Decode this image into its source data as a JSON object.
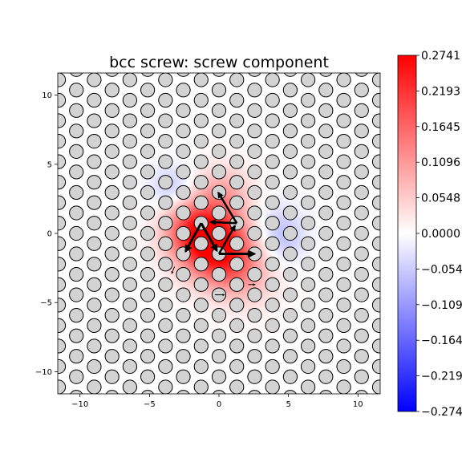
{
  "chart_data": {
    "type": "differential-displacement map with colored field",
    "title": "bcc screw: screw component",
    "xlim": [
      -11.6,
      11.6
    ],
    "ylim": [
      -11.6,
      11.6
    ],
    "x_ticks": [
      {
        "value": -10,
        "label": "−10"
      },
      {
        "value": -5,
        "label": "−5"
      },
      {
        "value": 0,
        "label": "0"
      },
      {
        "value": 5,
        "label": "5"
      },
      {
        "value": 10,
        "label": "10"
      }
    ],
    "y_ticks": [
      {
        "value": 10,
        "label": "10"
      },
      {
        "value": 5,
        "label": "5"
      },
      {
        "value": 0,
        "label": "0"
      },
      {
        "value": -5,
        "label": "−5"
      },
      {
        "value": -10,
        "label": "−10"
      }
    ],
    "colorbar": {
      "cmap": "bwr",
      "vmin": -0.2741,
      "vmax": 0.2741,
      "ticks": [
        {
          "value": 0.2741,
          "label": "0.2741"
        },
        {
          "value": 0.2193,
          "label": "0.2193"
        },
        {
          "value": 0.1645,
          "label": "0.1645"
        },
        {
          "value": 0.1096,
          "label": "0.1096"
        },
        {
          "value": 0.0548,
          "label": "0.0548"
        },
        {
          "value": 0.0,
          "label": "0.0000"
        },
        {
          "value": -0.0548,
          "label": "−0.0548"
        },
        {
          "value": -0.1096,
          "label": "−0.1096"
        },
        {
          "value": -0.1645,
          "label": "−0.1645"
        },
        {
          "value": -0.2193,
          "label": "−0.2193"
        },
        {
          "value": -0.2741,
          "label": "−0.2741"
        }
      ]
    },
    "lattice": {
      "a1": [
        2.565,
        0
      ],
      "a2": [
        1.2825,
        2.2214
      ],
      "basis": [
        [
          0,
          0
        ],
        [
          1.2825,
          0.7405
        ],
        [
          2.565,
          1.4809
        ]
      ],
      "atom_color": "#d3d3d3"
    },
    "arrows": [
      {
        "from": [
          0,
          -1.48
        ],
        "to": [
          2.56,
          -1.48
        ],
        "width": 3
      },
      {
        "from": [
          -1.28,
          0.74
        ],
        "to": [
          -2.4,
          -1.3
        ],
        "width": 3
      },
      {
        "from": [
          -1.28,
          0.74
        ],
        "to": [
          -0.15,
          -1.25
        ],
        "width": 3
      },
      {
        "from": [
          1.28,
          0.74
        ],
        "to": [
          -0.05,
          2.95
        ],
        "width": 2.5
      },
      {
        "from": [
          0,
          -1.48
        ],
        "to": [
          1.15,
          0.55
        ],
        "width": 2.5
      },
      {
        "from": [
          1.28,
          0.74
        ],
        "to": [
          -0.6,
          0.82
        ],
        "width": 2.5
      },
      {
        "from": [
          -0.3,
          -4.44
        ],
        "to": [
          0.4,
          -4.44
        ],
        "width": 1
      },
      {
        "from": [
          2.1,
          -3.7
        ],
        "to": [
          2.6,
          -3.7
        ],
        "width": 1
      },
      {
        "from": [
          -3.2,
          -2.4
        ],
        "to": [
          -3.4,
          -2.9
        ],
        "width": 1
      }
    ],
    "field_blobs": [
      {
        "center": [
          -0.4,
          -0.6
        ],
        "sigma": 1.8,
        "value": 0.24
      },
      {
        "center": [
          -2.0,
          0.3
        ],
        "sigma": 1.5,
        "value": 0.12
      },
      {
        "center": [
          0.8,
          -2.2
        ],
        "sigma": 1.6,
        "value": 0.09
      },
      {
        "center": [
          0.3,
          3.0
        ],
        "sigma": 1.4,
        "value": 0.08
      },
      {
        "center": [
          2.3,
          -3.6
        ],
        "sigma": 1.6,
        "value": 0.04
      },
      {
        "center": [
          -3.4,
          3.3
        ],
        "sigma": 1.1,
        "value": -0.06
      },
      {
        "center": [
          4.3,
          0.4
        ],
        "sigma": 1.3,
        "value": -0.055
      },
      {
        "center": [
          4.8,
          -0.9
        ],
        "sigma": 1.0,
        "value": -0.03
      }
    ]
  }
}
